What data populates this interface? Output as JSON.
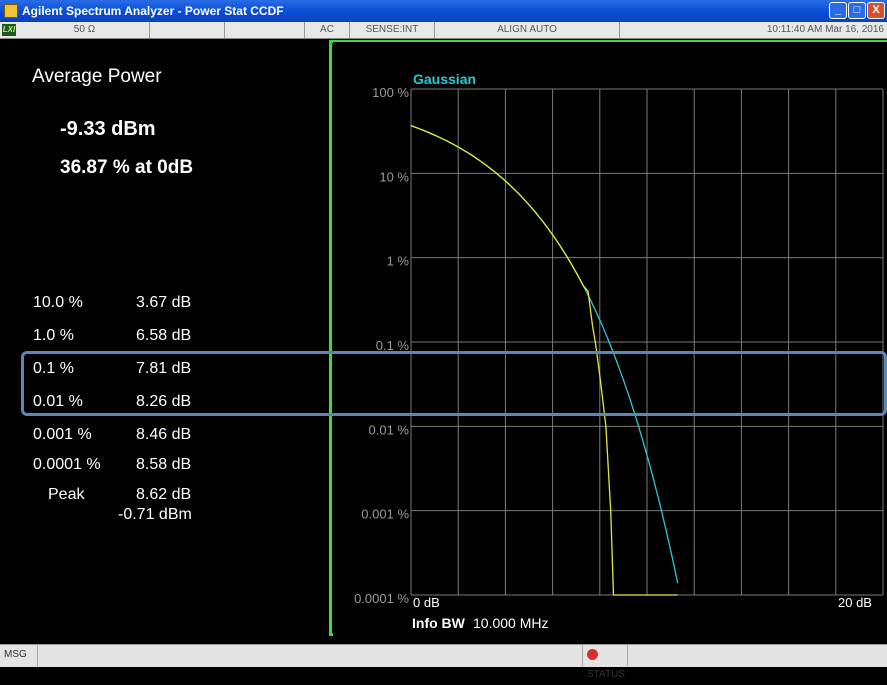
{
  "window": {
    "title": "Agilent Spectrum Analyzer - Power Stat CCDF",
    "buttons": [
      "_",
      "□",
      "X"
    ]
  },
  "status_bar": {
    "lxi": "LXI",
    "impedance": "50 Ω",
    "coupling": "AC",
    "sense": "SENSE:INT",
    "align": "ALIGN AUTO",
    "datetime": "10:11:40 AM Mar 16, 2016"
  },
  "results": {
    "average_power_label": "Average Power",
    "average_power_value": "-9.33 dBm",
    "percent_at_0db": "36.87 % at 0dB",
    "rows": [
      {
        "pct": "10.0 %",
        "db": "3.67 dB"
      },
      {
        "pct": "1.0 %",
        "db": "6.58 dB"
      },
      {
        "pct": "0.1 %",
        "db": "7.81 dB"
      },
      {
        "pct": "0.01 %",
        "db": "8.26 dB"
      },
      {
        "pct": "0.001 %",
        "db": "8.46 dB"
      },
      {
        "pct": "0.0001 %",
        "db": "8.58 dB"
      },
      {
        "pct": "Peak",
        "db": "8.62 dB"
      }
    ],
    "peak_dbm": "-0.71 dBm"
  },
  "graph": {
    "trace_label": "Gaussian",
    "y_ticks": [
      "100 %",
      "10 %",
      "1 %",
      "0.1 %",
      "0.01 %",
      "0.001 %",
      "0.0001 %"
    ],
    "x_start": "0 dB",
    "x_end": "20 dB",
    "info_bw_label": "Info BW",
    "info_bw_value": "10.000 MHz",
    "colors": {
      "gaussian": "#2fc6d4",
      "measured": "#e5e53a",
      "grid": "#7a7a7a"
    }
  },
  "bottom_bar": {
    "msg": "MSG",
    "status": "STATUS"
  }
}
